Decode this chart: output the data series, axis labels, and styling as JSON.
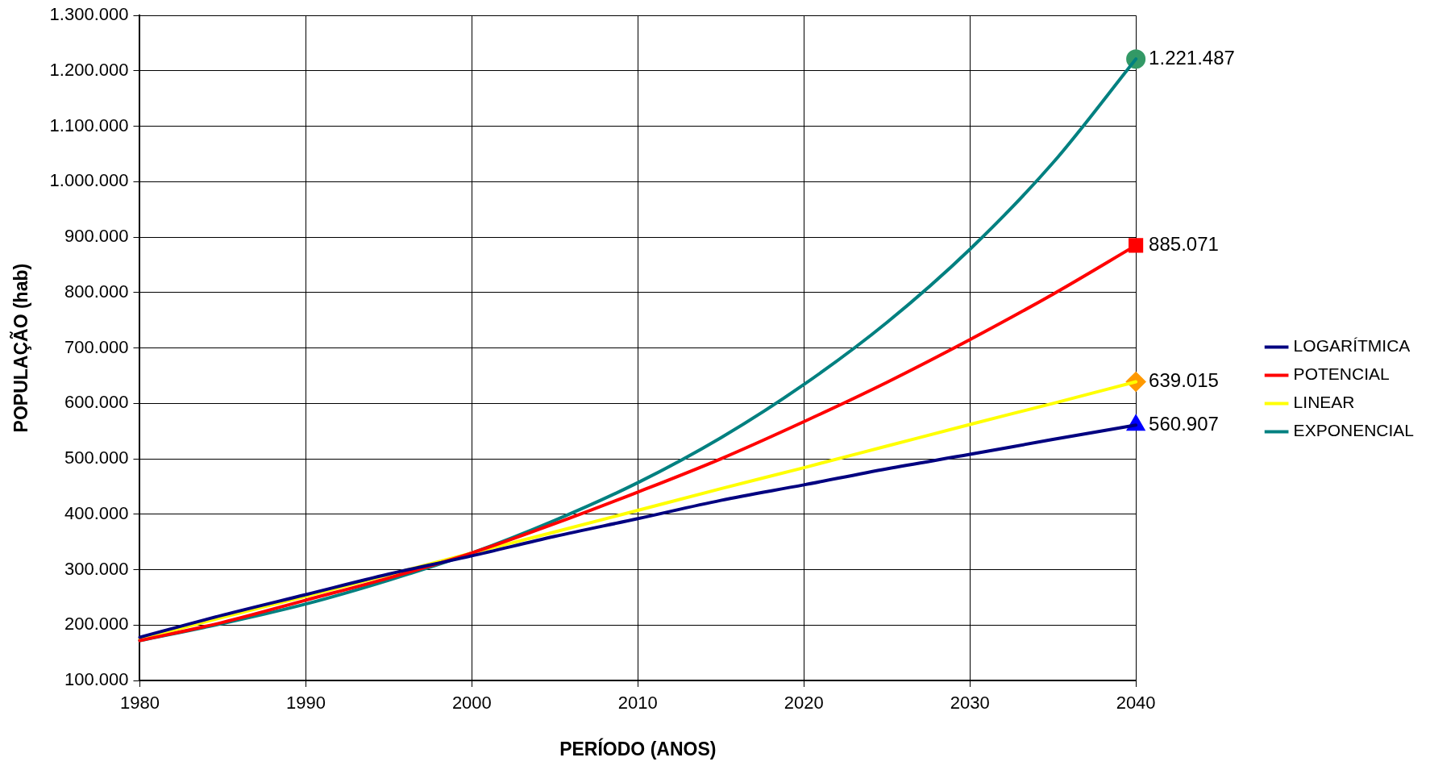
{
  "chart_data": {
    "type": "line",
    "xlabel": "PERÍODO (ANOS)",
    "ylabel": "POPULAÇÃO (hab)",
    "legend": "right",
    "grid": true,
    "line_style": "solid",
    "xlim": [
      1980,
      2040
    ],
    "xticks": [
      1980,
      1990,
      2000,
      2010,
      2020,
      2030,
      2040
    ],
    "ylim": [
      100000,
      1300000
    ],
    "yticks": [
      {
        "value": 100000,
        "label": "100.000"
      },
      {
        "value": 200000,
        "label": "200.000"
      },
      {
        "value": 300000,
        "label": "300.000"
      },
      {
        "value": 400000,
        "label": "400.000"
      },
      {
        "value": 500000,
        "label": "500.000"
      },
      {
        "value": 600000,
        "label": "600.000"
      },
      {
        "value": 700000,
        "label": "700.000"
      },
      {
        "value": 800000,
        "label": "800.000"
      },
      {
        "value": 900000,
        "label": "900.000"
      },
      {
        "value": 1000000,
        "label": "1.000.000"
      },
      {
        "value": 1100000,
        "label": "1.100.000"
      },
      {
        "value": 1200000,
        "label": "1.200.000"
      },
      {
        "value": 1300000,
        "label": "1.300.000"
      }
    ],
    "x": [
      1980,
      1985,
      1990,
      1995,
      2000,
      2005,
      2010,
      2015,
      2020,
      2025,
      2030,
      2035,
      2040
    ],
    "series": [
      {
        "name": "LOGARÍTMICA",
        "color": "#000080",
        "values": [
          178000,
          218000,
          255000,
          292000,
          325000,
          360000,
          392000,
          425000,
          453000,
          482000,
          508000,
          535000,
          560907
        ]
      },
      {
        "name": "POTENCIAL",
        "color": "#ff0000",
        "values": [
          172000,
          205000,
          245000,
          285000,
          330000,
          383000,
          440000,
          500000,
          567000,
          638000,
          715000,
          797000,
          885071
        ]
      },
      {
        "name": "LINEAR",
        "color": "#ffff00",
        "values": [
          175000,
          214000,
          252000,
          291000,
          330000,
          368000,
          407000,
          446000,
          484000,
          523000,
          562000,
          600000,
          639015
        ]
      },
      {
        "name": "EXPONENCIAL",
        "color": "#008080",
        "values": [
          172000,
          203000,
          238000,
          281000,
          330000,
          389000,
          457000,
          538000,
          634000,
          746000,
          878000,
          1034000,
          1221487
        ]
      },
      {
        "type": "scatter",
        "marker": "triangle",
        "color": "#0000ff",
        "values": [
          null,
          null,
          null,
          null,
          null,
          null,
          null,
          null,
          null,
          null,
          null,
          null,
          560907
        ],
        "value_labels": [
          null,
          null,
          null,
          null,
          null,
          null,
          null,
          null,
          null,
          null,
          null,
          null,
          "560.907"
        ]
      },
      {
        "type": "scatter",
        "marker": "square",
        "color": "#ff0000",
        "values": [
          null,
          null,
          null,
          null,
          null,
          null,
          null,
          null,
          null,
          null,
          null,
          null,
          885071
        ],
        "value_labels": [
          null,
          null,
          null,
          null,
          null,
          null,
          null,
          null,
          null,
          null,
          null,
          null,
          "885.071"
        ]
      },
      {
        "type": "scatter",
        "marker": "diamond",
        "color": "#ff9900",
        "values": [
          null,
          null,
          null,
          null,
          null,
          null,
          null,
          null,
          null,
          null,
          null,
          null,
          639015
        ],
        "value_labels": [
          null,
          null,
          null,
          null,
          null,
          null,
          null,
          null,
          null,
          null,
          null,
          null,
          "639.015"
        ]
      },
      {
        "type": "scatter",
        "marker": "circle",
        "color": "#339966",
        "values": [
          null,
          null,
          null,
          null,
          null,
          null,
          null,
          null,
          null,
          null,
          null,
          null,
          1221487
        ],
        "value_labels": [
          null,
          null,
          null,
          null,
          null,
          null,
          null,
          null,
          null,
          null,
          null,
          null,
          "1.221.487"
        ]
      }
    ]
  }
}
